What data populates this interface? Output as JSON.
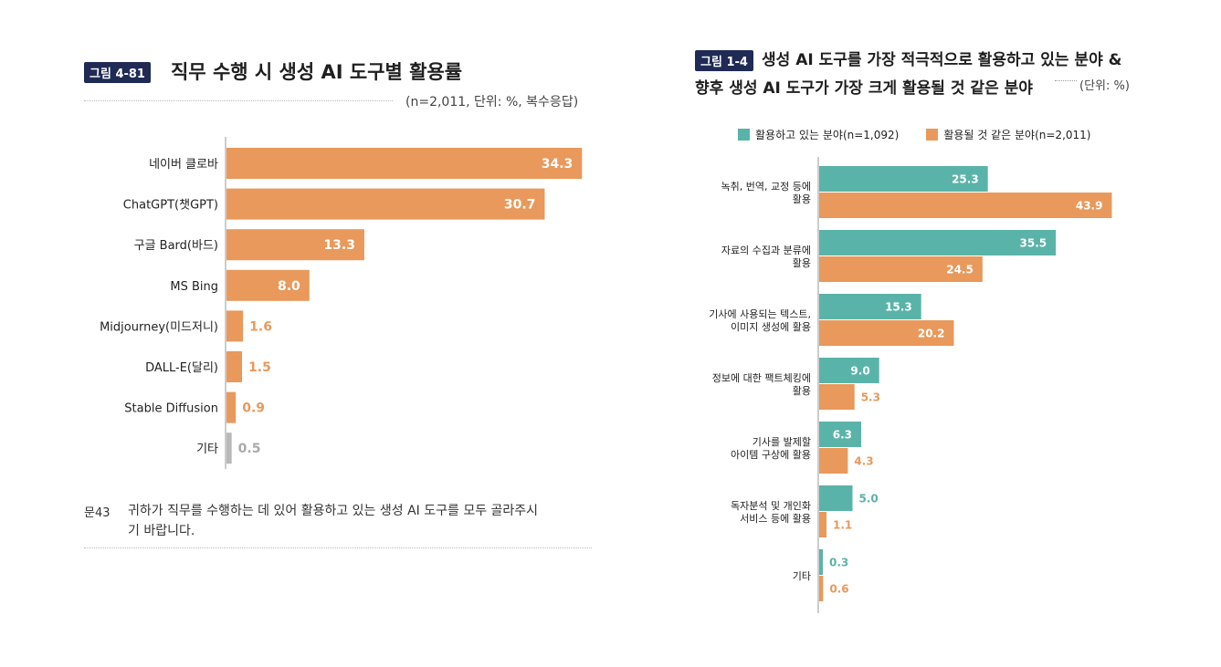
{
  "left_figure": {
    "badge": "그림 4-81",
    "title": "직무 수행 시 생성 AI 도구별 활용률",
    "note": "(n=2,011, 단위: %, 복수응답)",
    "question_label": "문43",
    "question_line1": "귀하가 직무를 수행하는 데 있어 활용하고 있는 생성 AI 도구를 모두 골라주시",
    "question_line2": "기 바랍니다."
  },
  "right_figure": {
    "badge": "그림 1-4",
    "title_line1": "생성 AI 도구를 가장 적극적으로 활용하고 있는 분야 &",
    "title_line2": "향후 생성 AI 도구가 가장 크게 활용될 것 같은 분야",
    "note": "(단위: %)"
  },
  "colors": {
    "orange": "#e8995b",
    "teal": "#5ab3a9",
    "gray": "#b8b8b8",
    "badge": "#1f2a55"
  },
  "chart_data": [
    {
      "type": "bar",
      "orientation": "horizontal",
      "categories": [
        "네이버 클로바",
        "ChatGPT(챗GPT)",
        "구글 Bard(바드)",
        "MS Bing",
        "Midjourney(미드저니)",
        "DALL-E(달리)",
        "Stable Diffusion",
        "기타"
      ],
      "values": [
        34.3,
        30.7,
        13.3,
        8.0,
        1.6,
        1.5,
        0.9,
        0.5
      ],
      "value_labels": [
        "34.3",
        "30.7",
        "13.3",
        "8.0",
        "1.6",
        "1.5",
        "0.9",
        "0.5"
      ]
    },
    {
      "type": "bar",
      "orientation": "horizontal",
      "legend_position": "top",
      "categories": [
        [
          "녹취, 번역, 교정 등에",
          "활용"
        ],
        [
          "자료의 수집과 분류에",
          "활용"
        ],
        [
          "기사에 사용되는 텍스트,",
          "이미지 생성에 활용"
        ],
        [
          "정보에 대한 팩트체킹에",
          "활용"
        ],
        [
          "기사를 발제할",
          "아이템 구상에 활용"
        ],
        [
          "독자분석 및 개인화",
          "서비스 등에 활용"
        ],
        [
          "기타"
        ]
      ],
      "series": [
        {
          "name": "활용하고 있는 분야(n=1,092)",
          "values": [
            25.3,
            35.5,
            15.3,
            9.0,
            6.3,
            5.0,
            0.3
          ],
          "value_labels": [
            "25.3",
            "35.5",
            "15.3",
            "9.0",
            "6.3",
            "5.0",
            "0.3"
          ]
        },
        {
          "name": "활용될 것 같은 분야(n=2,011)",
          "values": [
            43.9,
            24.5,
            20.2,
            5.3,
            4.3,
            1.1,
            0.6
          ],
          "value_labels": [
            "43.9",
            "24.5",
            "20.2",
            "5.3",
            "4.3",
            "1.1",
            "0.6"
          ]
        }
      ]
    }
  ]
}
